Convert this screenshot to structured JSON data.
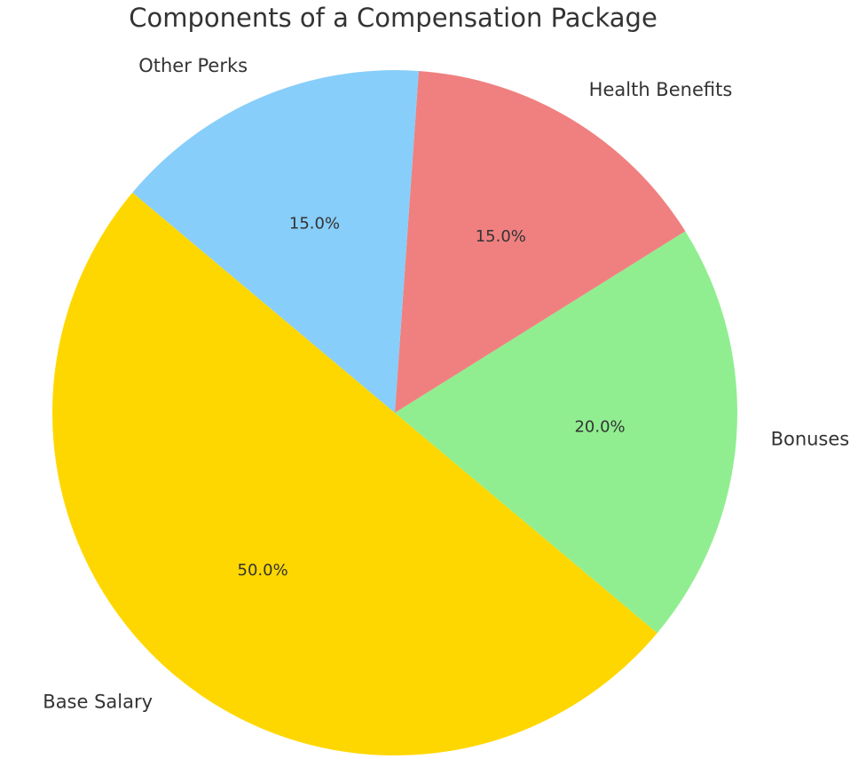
{
  "chart_data": {
    "type": "pie",
    "title": "Components of a Compensation Package",
    "categories": [
      "Base Salary",
      "Bonuses",
      "Health Benefits",
      "Other Perks"
    ],
    "values": [
      50.0,
      20.0,
      15.0,
      15.0
    ],
    "percent_labels": [
      "50.0%",
      "20.0%",
      "15.0%",
      "15.0%"
    ],
    "colors": [
      "#FFD700",
      "#90EE90",
      "#F08080",
      "#87CEFA"
    ],
    "start_angle_deg": 140,
    "direction": "counterclockwise",
    "legend": "none"
  }
}
